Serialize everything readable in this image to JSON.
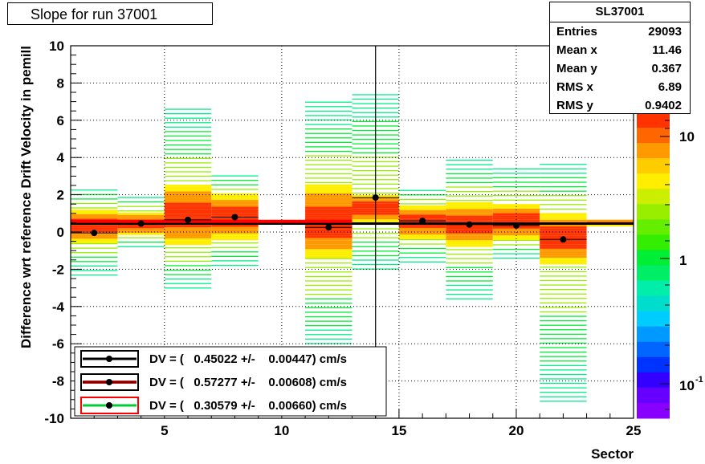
{
  "title": "Slope for run 37001",
  "stats": {
    "name": "SL37001",
    "rows": [
      {
        "label": "Entries",
        "value": "29093"
      },
      {
        "label": "Mean x",
        "value": "11.46"
      },
      {
        "label": "Mean y",
        "value": "0.367"
      },
      {
        "label": "RMS x",
        "value": "6.89"
      },
      {
        "label": "RMS y",
        "value": "0.9402"
      }
    ]
  },
  "palette": {
    "labels": [
      {
        "text": "10"
      },
      {
        "text": "1"
      },
      {
        "text": "10",
        "sup": "-1"
      }
    ]
  },
  "legend": [
    {
      "text": "DV = (   0.45022 +/-    0.00447) cm/s",
      "line_color": "#000000",
      "box_color": "#000000"
    },
    {
      "text": "DV = (   0.57277 +/-    0.00608) cm/s",
      "line_color": "#000000",
      "box_color": "#000000",
      "fill_color": "#ff0000"
    },
    {
      "text": "DV = (   0.30579 +/-    0.00660) cm/s",
      "line_color": "#00cc33",
      "box_color": "#ff0000"
    }
  ],
  "chart_data": {
    "type": "heatmap",
    "title": "Slope for run 37001",
    "xlabel": "Sector",
    "ylabel": "Difference wrt reference Drift Velocity in pemill",
    "xlim": [
      1,
      25
    ],
    "ylim": [
      -10,
      10
    ],
    "xticks": [
      5,
      10,
      15,
      20,
      25
    ],
    "yticks": [
      -10,
      -8,
      -6,
      -4,
      -2,
      0,
      2,
      4,
      6,
      8,
      10
    ],
    "grid": true,
    "z_scale": "log",
    "columns": [
      {
        "x0": 1,
        "x1": 3,
        "ymin": -2.4,
        "ymax": 2.3,
        "core": [
          -0.6,
          1.1
        ],
        "mean": -0.05
      },
      {
        "x0": 3,
        "x1": 5,
        "ymin": -1.0,
        "ymax": 1.8,
        "core": [
          -0.2,
          1.0
        ],
        "mean": 0.45
      },
      {
        "x0": 5,
        "x1": 7,
        "ymin": -3.1,
        "ymax": 6.7,
        "core": [
          -0.8,
          2.5
        ],
        "mean": 0.65
      },
      {
        "x0": 7,
        "x1": 9,
        "ymin": -2.0,
        "ymax": 3.1,
        "core": [
          -0.5,
          2.0
        ],
        "mean": 0.8
      },
      {
        "x0": 11,
        "x1": 13,
        "ymin": -6.8,
        "ymax": 7.0,
        "core": [
          -1.5,
          2.5
        ],
        "mean": 0.25
      },
      {
        "x0": 13,
        "x1": 15,
        "ymin": -2.2,
        "ymax": 7.5,
        "core": [
          0.4,
          2.0
        ],
        "mean": 1.85
      },
      {
        "x0": 15,
        "x1": 17,
        "ymin": -1.7,
        "ymax": 2.3,
        "core": [
          -0.4,
          1.4
        ],
        "mean": 0.6
      },
      {
        "x0": 17,
        "x1": 19,
        "ymin": -3.8,
        "ymax": 3.9,
        "core": [
          -0.8,
          1.5
        ],
        "mean": 0.4
      },
      {
        "x0": 19,
        "x1": 21,
        "ymin": -1.5,
        "ymax": 3.4,
        "core": [
          -0.5,
          1.5
        ],
        "mean": 0.35
      },
      {
        "x0": 21,
        "x1": 23,
        "ymin": -9.3,
        "ymax": 3.6,
        "core": [
          -1.8,
          1.0
        ],
        "mean": -0.4
      },
      {
        "x0": 23,
        "x1": 25,
        "ymin": 0.3,
        "ymax": 0.6,
        "core": [
          0.3,
          0.6
        ],
        "mean": 0.45
      }
    ],
    "fits": [
      {
        "name": "DV = (   0.45022 +/-    0.00447) cm/s",
        "slope": 0.45022,
        "x0": 1,
        "x1": 25,
        "color": "#000000"
      },
      {
        "name": "DV = (   0.57277 +/-    0.00608) cm/s",
        "slope": 0.57277,
        "x0": 1,
        "x1": 13,
        "color": "#ff0000"
      }
    ],
    "vertical_marker_x": 14
  }
}
